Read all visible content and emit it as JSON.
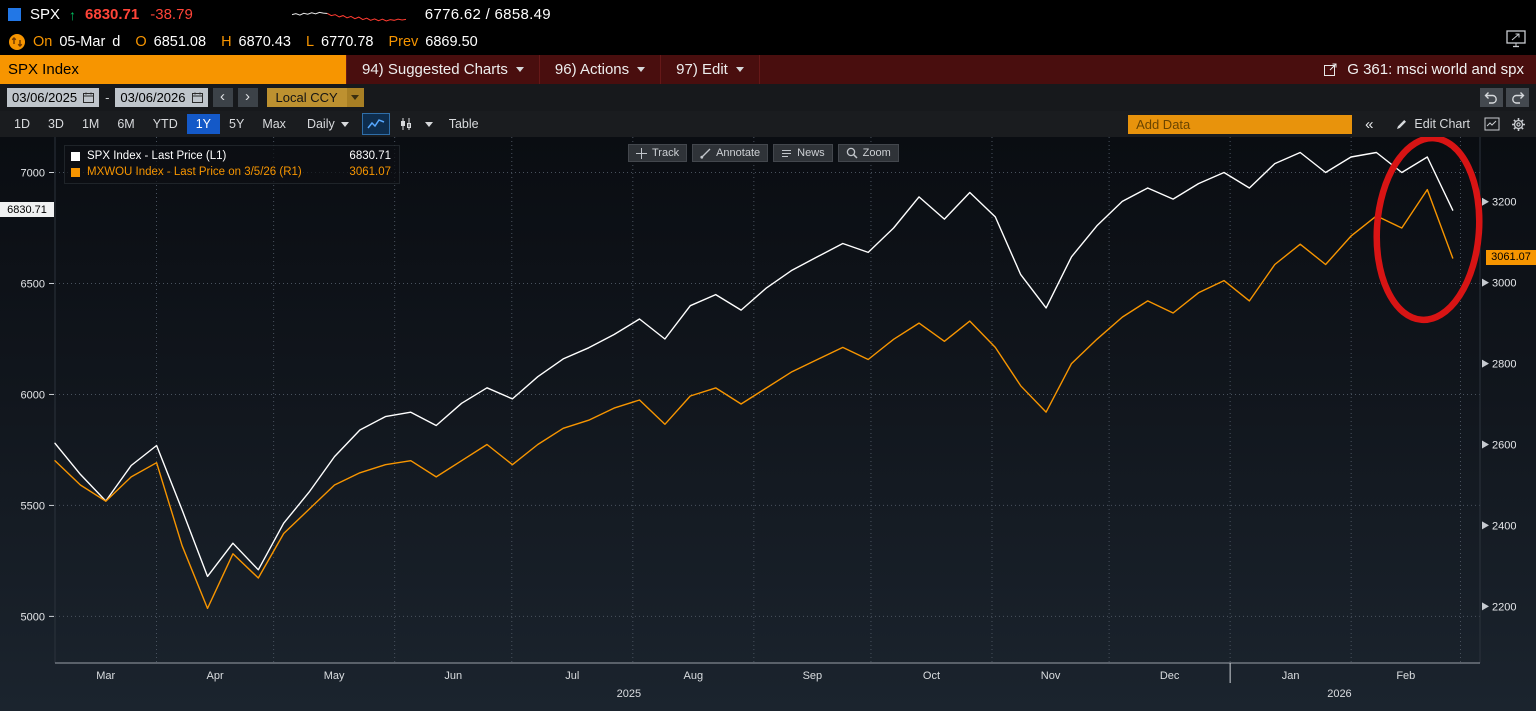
{
  "colors": {
    "amber": "#f79500",
    "down_red": "#ff4438",
    "up_green": "#00c060",
    "series_spx": "#ffffff",
    "series_mxwou": "#f79500",
    "active_tab_blue": "#1459c8",
    "annotation_red": "#d81414",
    "menu_maroon": "#490e0e"
  },
  "quote_bar": {
    "ticker": "SPX",
    "direction_glyph": "↑",
    "last": "6830.71",
    "change": "-38.79",
    "range_low": "6776.62",
    "range_sep": "/",
    "range_high": "6858.49"
  },
  "ohlc_bar": {
    "on_label": "On",
    "date": "05-Mar",
    "freq": "d",
    "open_label": "O",
    "open": "6851.08",
    "high_label": "H",
    "high": "6870.43",
    "low_label": "L",
    "low": "6770.78",
    "prev_label": "Prev",
    "prev": "6869.50"
  },
  "menu_bar": {
    "security": "SPX Index",
    "items": [
      {
        "label": "94) Suggested Charts"
      },
      {
        "label": "96) Actions"
      },
      {
        "label": "97) Edit"
      }
    ],
    "chart_title": "G 361: msci world and spx"
  },
  "range_bar": {
    "start_date": "03/06/2025",
    "end_date": "03/06/2026",
    "separator": "-",
    "prev_glyph": "‹",
    "next_glyph": "›",
    "currency": "Local CCY"
  },
  "toolbar": {
    "ranges": [
      "1D",
      "3D",
      "1M",
      "6M",
      "YTD",
      "1Y",
      "5Y",
      "Max"
    ],
    "active_range": "1Y",
    "frequency": "Daily",
    "table_label": "Table",
    "add_data_placeholder": "Add Data",
    "collapse_label": "«",
    "edit_chart_label": "Edit Chart"
  },
  "chart_tools": [
    "Track",
    "Annotate",
    "News",
    "Zoom"
  ],
  "legend": [
    {
      "label": "SPX Index - Last Price (L1)",
      "value": "6830.71",
      "color": "#ffffff"
    },
    {
      "label": "MXWOU Index - Last Price on 3/5/26 (R1)",
      "value": "3061.07",
      "color": "#f79500"
    }
  ],
  "sparkline": {
    "split": 9,
    "start_color": "#e8e8e8",
    "end_color": "#ff3b30",
    "values": [
      58,
      63,
      55,
      65,
      60,
      68,
      62,
      70,
      66,
      64,
      52,
      58,
      45,
      52,
      40,
      48,
      35,
      44,
      30,
      38,
      26,
      34,
      24,
      32,
      22,
      30,
      26,
      33,
      28,
      31
    ]
  },
  "chart_data": {
    "type": "line",
    "title": "G 361: msci world and spx",
    "x_range_days": 365,
    "months": [
      {
        "label": "Mar",
        "start": 0,
        "end": 26
      },
      {
        "label": "Apr",
        "start": 26,
        "end": 56
      },
      {
        "label": "May",
        "start": 56,
        "end": 87
      },
      {
        "label": "Jun",
        "start": 87,
        "end": 117
      },
      {
        "label": "Jul",
        "start": 117,
        "end": 148
      },
      {
        "label": "Aug",
        "start": 148,
        "end": 179
      },
      {
        "label": "Sep",
        "start": 179,
        "end": 209
      },
      {
        "label": "Oct",
        "start": 209,
        "end": 240
      },
      {
        "label": "Nov",
        "start": 240,
        "end": 270
      },
      {
        "label": "Dec",
        "start": 270,
        "end": 301
      },
      {
        "label": "Jan",
        "start": 301,
        "end": 332
      },
      {
        "label": "Feb",
        "start": 332,
        "end": 360
      }
    ],
    "year_labels": [
      {
        "label": "2025",
        "day": 147
      },
      {
        "label": "2026",
        "day": 329
      }
    ],
    "year_divider_day": 301,
    "left_axis": {
      "min": 4790,
      "max": 7160,
      "ticks": [
        7000,
        6500,
        6000,
        5500,
        5000
      ],
      "last": 6830.71,
      "last_label": "6830.71"
    },
    "right_axis": {
      "min": 2060,
      "max": 3360,
      "ticks": [
        3200,
        3000,
        2800,
        2600,
        2400,
        2200
      ],
      "last": 3061.07,
      "last_label": "3061.07"
    },
    "series": [
      {
        "name": "SPX Index - Last Price (L1)",
        "axis": "left",
        "color": "#ffffff",
        "width": 1.4,
        "end_day": 358,
        "values": [
          5780,
          5640,
          5520,
          5680,
          5770,
          5480,
          5180,
          5330,
          5210,
          5420,
          5560,
          5720,
          5840,
          5900,
          5920,
          5860,
          5960,
          6030,
          5980,
          6080,
          6160,
          6210,
          6270,
          6340,
          6250,
          6400,
          6450,
          6380,
          6480,
          6560,
          6620,
          6680,
          6640,
          6750,
          6890,
          6790,
          6910,
          6800,
          6540,
          6390,
          6620,
          6760,
          6870,
          6930,
          6880,
          6950,
          7000,
          6930,
          7040,
          7090,
          7000,
          7070,
          7090,
          7000,
          7070,
          6830.71
        ]
      },
      {
        "name": "MXWOU Index - Last Price on 3/5/26 (R1)",
        "axis": "right",
        "color": "#f79500",
        "width": 1.4,
        "end_day": 358,
        "values": [
          2560,
          2500,
          2460,
          2520,
          2555,
          2350,
          2195,
          2330,
          2270,
          2380,
          2440,
          2500,
          2530,
          2550,
          2560,
          2520,
          2560,
          2600,
          2550,
          2600,
          2640,
          2660,
          2690,
          2710,
          2650,
          2720,
          2740,
          2700,
          2740,
          2780,
          2810,
          2840,
          2810,
          2860,
          2900,
          2855,
          2905,
          2840,
          2745,
          2680,
          2800,
          2860,
          2915,
          2955,
          2925,
          2975,
          3005,
          2955,
          3045,
          3095,
          3045,
          3115,
          3165,
          3135,
          3230,
          3061.07
        ]
      }
    ],
    "annotation": {
      "shape": "ellipse",
      "cx": 1428,
      "cy": 92,
      "rx": 51,
      "ry": 91,
      "rotate": 4,
      "color": "#d81414",
      "stroke_width": 6.5
    }
  }
}
